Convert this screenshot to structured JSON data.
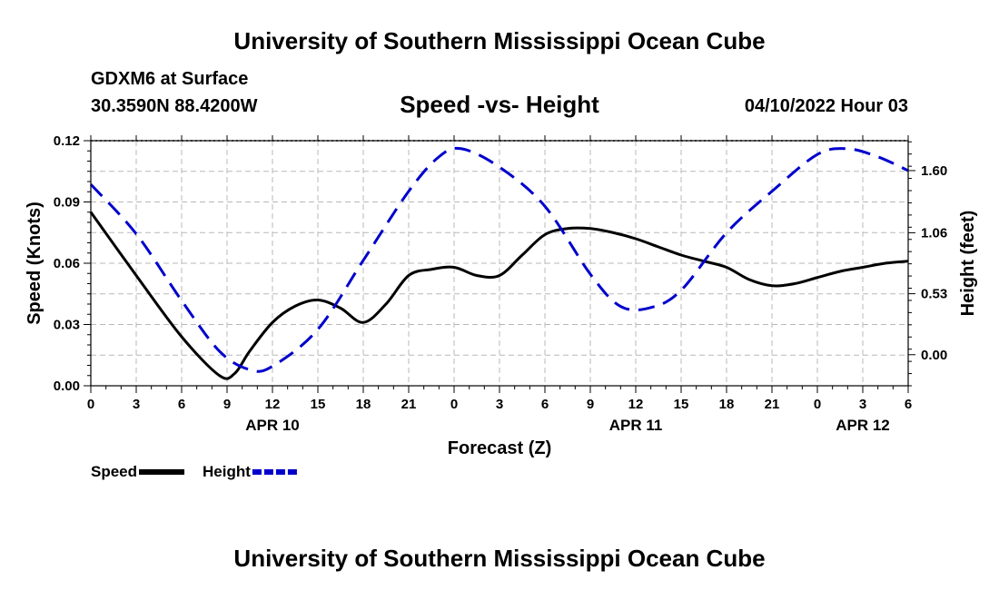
{
  "header": {
    "title": "University of Southern Mississippi Ocean Cube",
    "station": "GDXM6 at Surface",
    "coords": "30.3590N  88.4200W",
    "datetime": "04/10/2022 Hour 03",
    "footer_title": "University of Southern Mississippi Ocean Cube"
  },
  "chart_data": {
    "type": "line",
    "title": "Speed -vs- Height",
    "xlabel": "Forecast (Z)",
    "ylabel": "Speed (Knots)",
    "y2label": "Height (feet)",
    "xlim": [
      0,
      54
    ],
    "ylim": [
      0,
      0.12
    ],
    "y2lim": [
      -0.27,
      1.86
    ],
    "x_ticks": [
      0,
      3,
      6,
      9,
      12,
      15,
      18,
      21,
      24,
      27,
      30,
      33,
      36,
      39,
      42,
      45,
      48,
      51,
      54
    ],
    "x_tick_labels": [
      "0",
      "3",
      "6",
      "9",
      "12",
      "15",
      "18",
      "21",
      "0",
      "3",
      "6",
      "9",
      "12",
      "15",
      "18",
      "21",
      "0",
      "3",
      "6"
    ],
    "date_labels": [
      {
        "x": 12,
        "label": "APR 10"
      },
      {
        "x": 36,
        "label": "APR 11"
      },
      {
        "x": 51,
        "label": "APR 12"
      }
    ],
    "y_ticks": [
      0.0,
      0.03,
      0.06,
      0.09,
      0.12
    ],
    "y_tick_labels": [
      "0.00",
      "0.03",
      "0.06",
      "0.09",
      "0.12"
    ],
    "y2_ticks": [
      0.0,
      0.53,
      1.06,
      1.6
    ],
    "y2_tick_labels": [
      "0.00",
      "0.53",
      "1.06",
      "1.60"
    ],
    "series": [
      {
        "name": "Speed",
        "axis": "left",
        "color": "#000000",
        "dash": "solid",
        "x": [
          0,
          3,
          6,
          8.5,
          9.5,
          10.5,
          12,
          13.5,
          15,
          16.5,
          18,
          19.5,
          21,
          22.5,
          24,
          25.5,
          27,
          28.5,
          30,
          31.5,
          33,
          34.5,
          36,
          37.5,
          39,
          40.5,
          42,
          43.5,
          45,
          46.5,
          48,
          49.5,
          51,
          52.5,
          54
        ],
        "values": [
          0.085,
          0.054,
          0.024,
          0.005,
          0.006,
          0.017,
          0.031,
          0.039,
          0.042,
          0.038,
          0.031,
          0.04,
          0.054,
          0.057,
          0.058,
          0.054,
          0.054,
          0.064,
          0.074,
          0.077,
          0.077,
          0.075,
          0.072,
          0.068,
          0.064,
          0.061,
          0.058,
          0.052,
          0.049,
          0.05,
          0.053,
          0.056,
          0.058,
          0.06,
          0.061
        ]
      },
      {
        "name": "Height",
        "axis": "right",
        "color": "#0000cc",
        "dash": "dashed",
        "x": [
          0,
          3,
          6,
          8.5,
          10.5,
          12,
          15,
          18,
          21,
          23,
          24.5,
          27,
          30,
          33,
          35,
          37,
          39,
          42,
          45,
          48,
          50,
          52,
          54
        ],
        "values": [
          1.48,
          1.05,
          0.47,
          0.03,
          -0.13,
          -0.1,
          0.22,
          0.82,
          1.42,
          1.72,
          1.79,
          1.63,
          1.29,
          0.7,
          0.42,
          0.41,
          0.56,
          1.06,
          1.42,
          1.74,
          1.79,
          1.72,
          1.6
        ]
      }
    ],
    "legend": [
      {
        "label": "Speed",
        "color": "#000000",
        "dash": "solid"
      },
      {
        "label": "Height",
        "color": "#0000cc",
        "dash": "dashed"
      }
    ],
    "legend_position": "bottom-left",
    "grid": true
  }
}
